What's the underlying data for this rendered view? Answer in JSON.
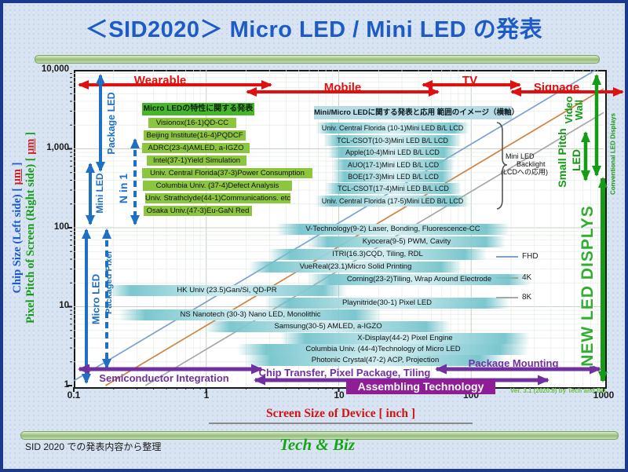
{
  "page": {
    "title": "＜SID2020＞ Micro LED / Mini LED の発表",
    "footer_note": "SID 2020 での発表内容から整理",
    "brand": "Tech & Biz",
    "version_note": "Ver. 3.1 (2020.8) by Tech and Biz"
  },
  "axes": {
    "y_left_text": "Chip Size (Left side)",
    "y_right_text": "Pixel Pitch of Screen (Right side)",
    "bracket_open": "[",
    "unit": "μm",
    "bracket_close": "]",
    "x_label": "Screen  Size of Device [ inch ]"
  },
  "top_arrows": [
    "Wearable",
    "Mobile",
    "TV",
    "Signage"
  ],
  "left_arrows": {
    "package_led": "Package LED",
    "mini_led": "Mini LED",
    "n_in_1": "N in 1",
    "micro_led": "Micro LED",
    "packaged_pixel": "Packaged Pixel"
  },
  "right_side": {
    "video_wall": "Video\nWall",
    "small_pitch": "Small Pitch",
    "led": "LED",
    "conventional": "Conventional LED Displays",
    "new_led": "NEW LED DISPLYS"
  },
  "bottom_arrows": {
    "semiconductor": "Semiconductor Integration",
    "chip_transfer": "Chip Transfer, Pixel Package, Tiling",
    "package_mounting": "Package Mounting",
    "assembling": "Assembling Technology"
  },
  "left_list": {
    "header": "Micro LEDの特性に関する発表",
    "items": [
      "Visionox(16-1)QD-CC",
      "Beijing Institute(16-4)PQDCF",
      "ADRC(23-4)AMLED, a-IGZO",
      "Intel(37-1)Yield Simulation",
      "Univ. Central Florida(37-3)Power Consumption",
      "Columbia Univ. (37-4)Defect Analysis",
      "Univ. Strathclyde(44-1)Communications. etc",
      "Osaka Univ.(47-3)Eu-GaN Red"
    ]
  },
  "right_list": {
    "header": "Mini/Micro LEDに関する発表と応用 範囲のイメージ（横軸）",
    "items": [
      "Univ. Central Florida (10-1)Mini LED B/L LCD",
      "TCL-CSOT(10-3)Mini LED B/L LCD",
      "Apple(10-4)Mini LED B/L LCD",
      "AUO(17-1)Mini LED B/L LCD",
      "BOE(17-3)Mini LED B/L LCD",
      "TCL-CSOT(17-4)Mini LED B/L LCD",
      "Univ. Central Florida (17-5)Mini LED B/L LCD"
    ]
  },
  "mid_labels": [
    "V-Technology(9-2) Laser, Bonding, Fluorescence-CC",
    "Kyocera(9-5) PWM, Cavity",
    "ITRI(16.3)CQD, Tiling, RDL",
    "VueReal(23.1)Micro Solid Printing",
    "Corning(23-2)Tiling, Wrap Around Electrode",
    "HK Univ (23.5)Gan/Si, QD-PR",
    "Playnitride(30-1) Pixel LED",
    "NS Nanotech (30-3) Nano LED, Monolithic",
    "Samsung(30-5) AMLED, a-IGZO",
    "X-Display(44-2) Pixel Engine",
    "Columbia Univ. (44-4)Technology of Micro LED",
    "Photonic Crystal(47-2) ACP, Projection"
  ],
  "mini_backlight": {
    "line1": "Mini LED",
    "line2": "Backlight",
    "line3": "(LCDへの応用)"
  },
  "colors": {
    "red": "#e01010",
    "blue": "#1f6fc4",
    "purple": "#7030a0",
    "green": "#169b16",
    "title_blue": "#1d5cc6"
  },
  "chart_data": {
    "type": "line",
    "title": "＜SID2020＞ Micro LED / Mini LED の発表",
    "xlabel": "Screen  Size of Device [ inch ]",
    "ylabel": "Chip Size (Left side) / Pixel Pitch of Screen (Right side) [ μm ]",
    "xscale": "log",
    "yscale": "log",
    "xlim": [
      0.1,
      1000
    ],
    "ylim": [
      1,
      10000
    ],
    "x_ticks": [
      "0.1",
      "1",
      "10",
      "100",
      "1000"
    ],
    "y_ticks": [
      "10,000",
      "1,000",
      "100",
      "10",
      "1"
    ],
    "grid": true,
    "legend_position": "right-middle",
    "series": [
      {
        "name": "FHD",
        "color": "#7ba2d0",
        "pitch_um_per_inch": 11.5
      },
      {
        "name": "4K",
        "color": "#d0823f",
        "pitch_um_per_inch": 5.76
      },
      {
        "name": "8K",
        "color": "#a8a8a8",
        "pitch_um_per_inch": 2.88
      }
    ]
  }
}
